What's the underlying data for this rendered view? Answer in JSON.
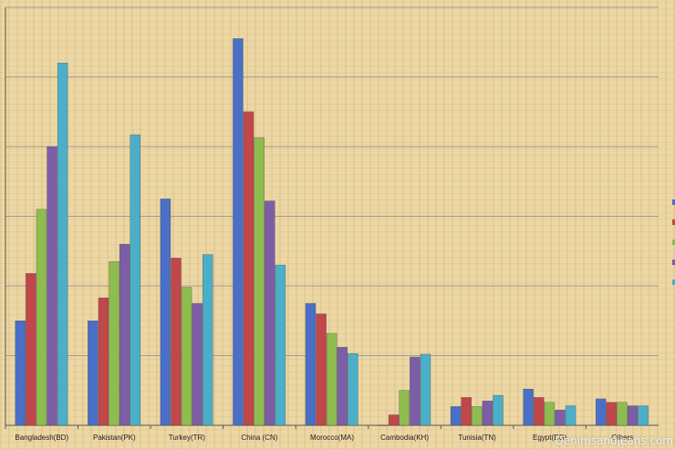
{
  "chart_data": {
    "type": "bar",
    "categories": [
      "Bangladesh(BD)",
      "Pakistan(PK)",
      "Turkey(TR)",
      "China (CN)",
      "Morocco(MA)",
      "Cambodia(KH)",
      "Tunisia(TN)",
      "Egypt(EG)",
      "Others"
    ],
    "series": [
      {
        "values": [
          1.5,
          1.5,
          3.25,
          5.55,
          1.75,
          0.0,
          0.27,
          0.52,
          0.38
        ],
        "color": "#4a6fc7"
      },
      {
        "values": [
          2.18,
          1.83,
          2.4,
          4.5,
          1.6,
          0.15,
          0.4,
          0.4,
          0.33
        ],
        "color": "#c0474a"
      },
      {
        "values": [
          3.1,
          2.35,
          1.98,
          4.13,
          1.32,
          0.5,
          0.27,
          0.33,
          0.33
        ],
        "color": "#8fbc4f"
      },
      {
        "values": [
          4.0,
          2.6,
          1.75,
          3.22,
          1.12,
          0.98,
          0.35,
          0.22,
          0.28
        ],
        "color": "#7c5ea6"
      },
      {
        "values": [
          5.2,
          4.17,
          2.45,
          2.3,
          1.03,
          1.02,
          0.43,
          0.28,
          0.28
        ],
        "color": "#4bafc9"
      }
    ],
    "ylim": [
      0,
      6
    ],
    "grid": true,
    "legend_markers": true
  },
  "watermark": "Denimsandjeans.com",
  "colors": {
    "background": "#ecd7a4",
    "gridline": "#8a8a8a"
  }
}
